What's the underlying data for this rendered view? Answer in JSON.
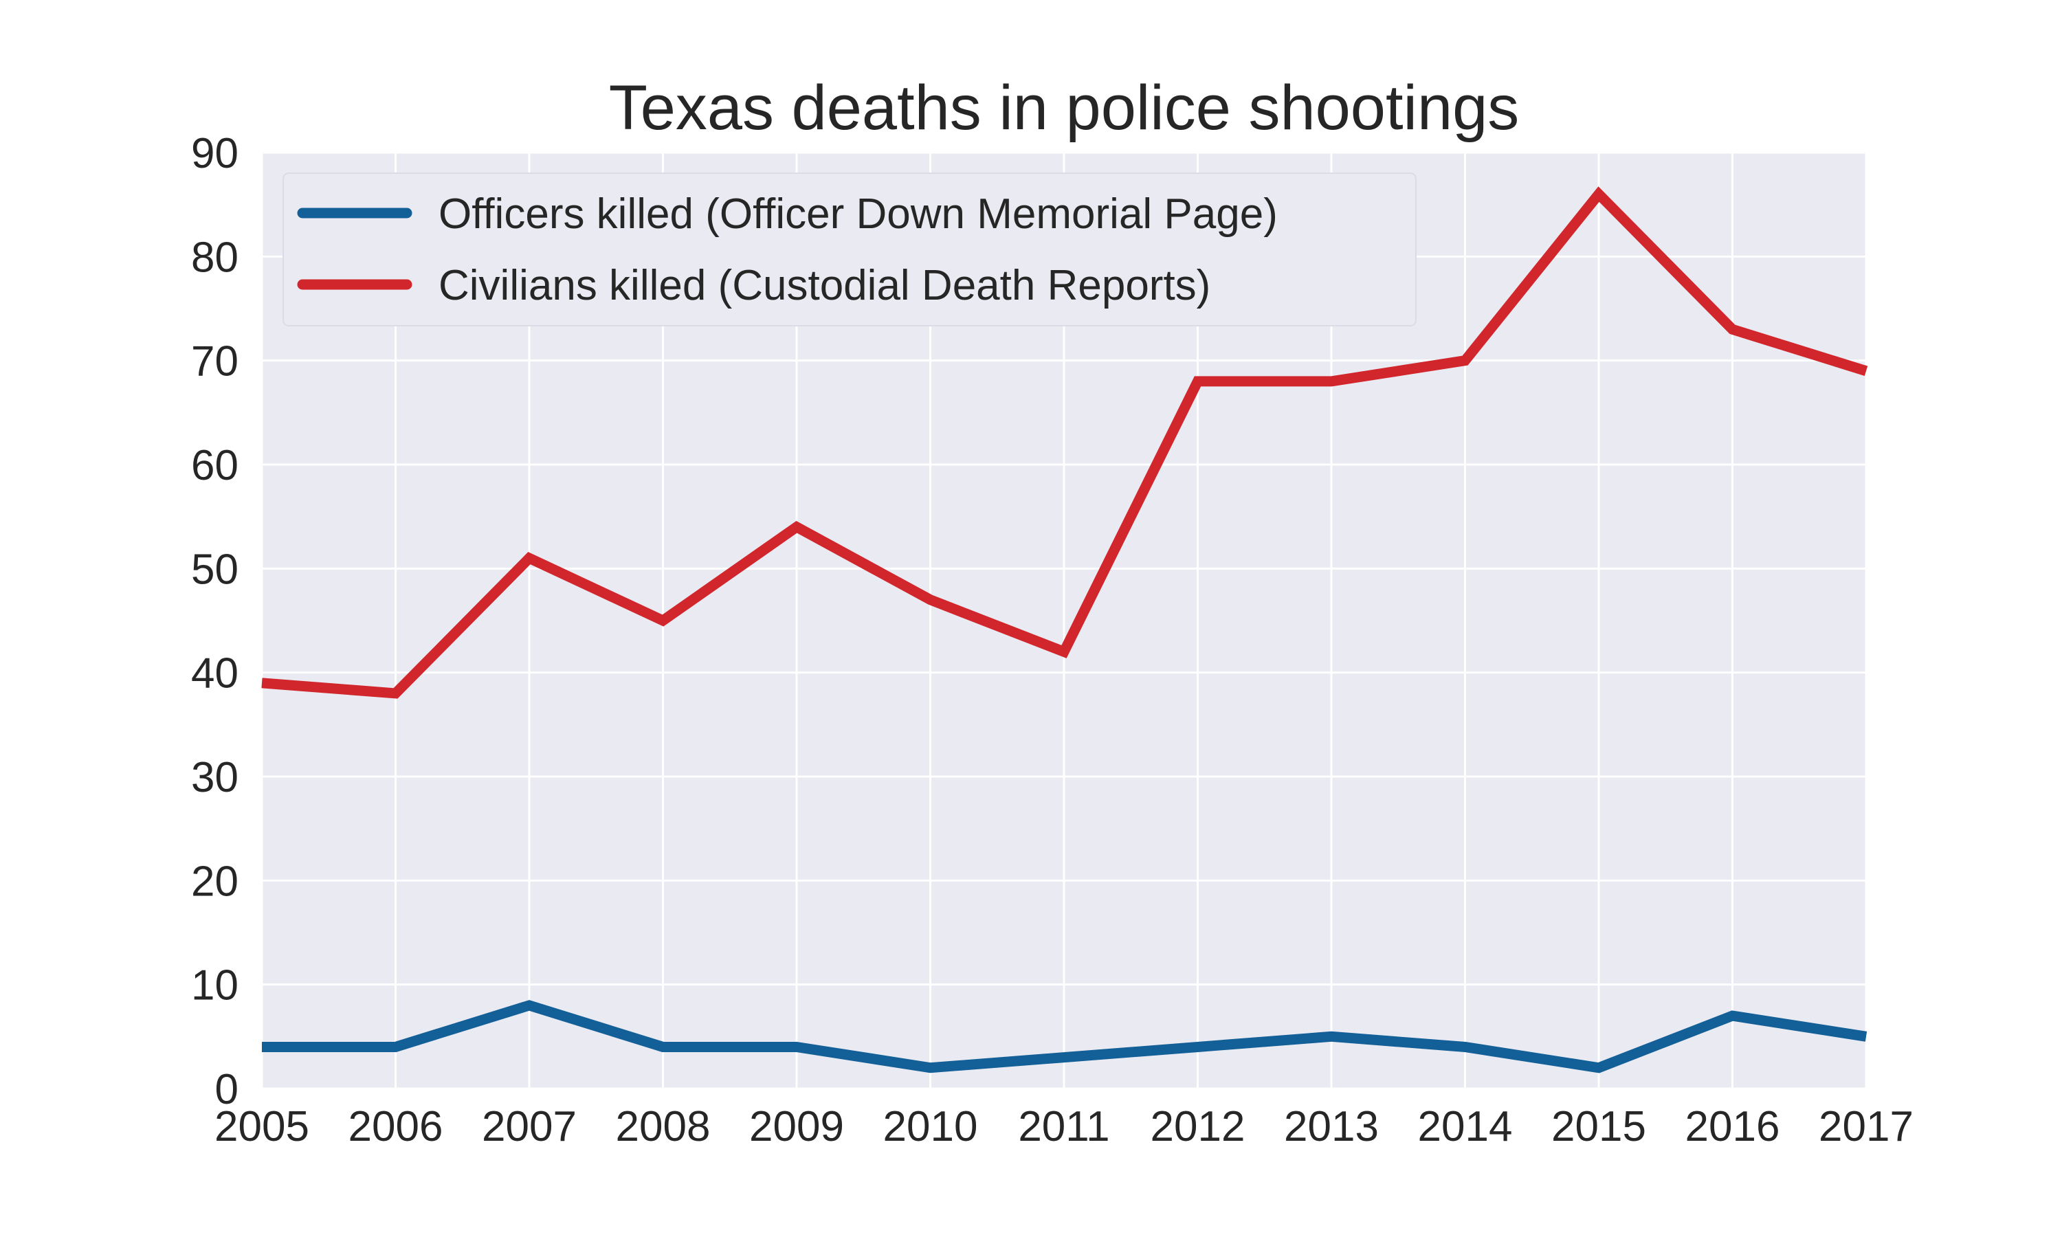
{
  "chart_data": {
    "type": "line",
    "title": "Texas deaths in police shootings",
    "xlabel": "",
    "ylabel": "",
    "x": [
      2005,
      2006,
      2007,
      2008,
      2009,
      2010,
      2011,
      2012,
      2013,
      2014,
      2015,
      2016,
      2017
    ],
    "x_tick_labels": [
      "2005",
      "2006",
      "2007",
      "2008",
      "2009",
      "2010",
      "2011",
      "2012",
      "2013",
      "2014",
      "2015",
      "2016",
      "2017"
    ],
    "ylim": [
      0,
      90
    ],
    "y_ticks": [
      0,
      10,
      20,
      30,
      40,
      50,
      60,
      70,
      80,
      90
    ],
    "y_tick_labels": [
      "0",
      "10",
      "20",
      "30",
      "40",
      "50",
      "60",
      "70",
      "80",
      "90"
    ],
    "grid": true,
    "legend_position": "top-left",
    "plot_background": "#eaeaf2",
    "grid_color": "#ffffff",
    "series": [
      {
        "name": "Officers killed (Officer Down Memorial Page)",
        "color": "#135f98",
        "values": [
          4,
          4,
          8,
          4,
          4,
          2,
          3,
          4,
          5,
          4,
          2,
          7,
          5
        ]
      },
      {
        "name": "Civilians killed (Custodial Death Reports)",
        "color": "#d1262b",
        "values": [
          39,
          38,
          51,
          45,
          54,
          47,
          42,
          68,
          68,
          70,
          86,
          73,
          69
        ]
      }
    ]
  }
}
